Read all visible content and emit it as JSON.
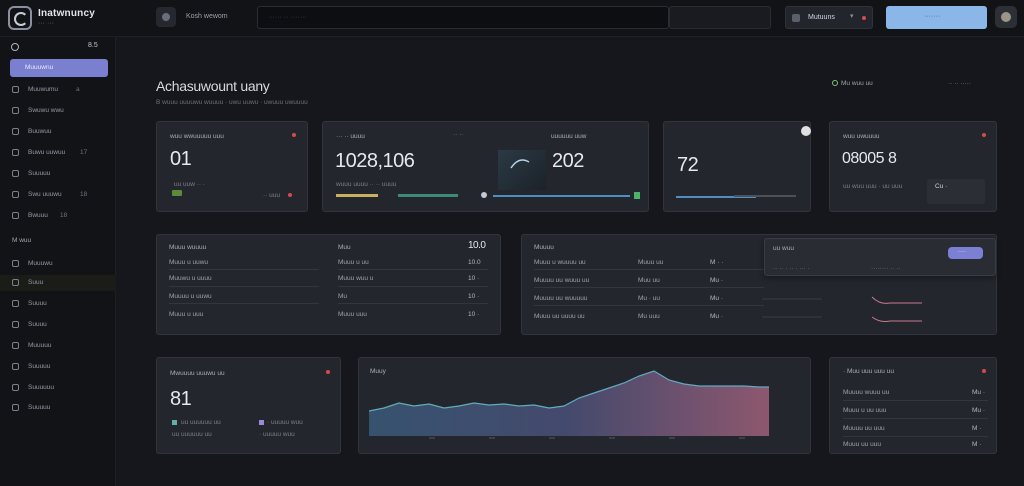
{
  "app": {
    "brand": "Inatwnuncy",
    "brand_sub": "··· ···"
  },
  "topbar": {
    "label": "Kosh wewom",
    "search_placeholder": "······ ·· ·······",
    "workspace": "Mutuuns",
    "workspace_chevron": "▾",
    "primary_button": "·······"
  },
  "sidebar": {
    "top_count": "8.5",
    "active": "Muuuwnu",
    "items": [
      {
        "label": "Muuwumu",
        "badge": "a"
      },
      {
        "label": "Swuwu wwu",
        "badge": ""
      },
      {
        "label": "Buuwuu",
        "badge": ""
      },
      {
        "label": "Buwu uuwuu",
        "badge": "17"
      },
      {
        "label": "Suuuuu",
        "badge": ""
      },
      {
        "label": "Swu uuuwu",
        "badge": "18"
      },
      {
        "label": "Bwuuu",
        "badge": "18"
      }
    ],
    "section": "M wuu",
    "items2": [
      {
        "label": "Muuuwu"
      },
      {
        "label": "Suuu"
      },
      {
        "label": "Suuuu"
      },
      {
        "label": "Suuuu"
      },
      {
        "label": "Muuuuu"
      },
      {
        "label": "Suuuuu"
      },
      {
        "label": "Suuuuuu"
      },
      {
        "label": "Suuuuu"
      }
    ]
  },
  "header": {
    "title": "Achasuwount uany",
    "subtitle": "B wuuu uuuuwu wuuuu · uwu uuwu · uwuuu uwuuuu",
    "right1": "Mu wuu uu",
    "right2": "·· ·· ·····"
  },
  "stats": [
    {
      "title": "wuu wwuuuuu uuu",
      "value": "01",
      "footnote": "uu uuw ·· ·",
      "side": "·· uuu"
    },
    {
      "title": "··· ·· uuuu",
      "value": "1028,106",
      "footnote": "wuuu uuuu ·· ·· uuuu",
      "side": "·· ··"
    },
    {
      "title": "uuuuuu uuw",
      "value": "202",
      "footnote": "",
      "side": ""
    },
    {
      "title": "",
      "value": "72",
      "footnote": "",
      "side": ""
    },
    {
      "title": "wuu uwuuuu",
      "value": "08005 8",
      "footnote": "uu wuu uuu · uu uuu",
      "side": "Cu ·"
    }
  ],
  "table_left": {
    "title": "Muuu wuuuu",
    "col2": "Muu",
    "col3": "10.0",
    "rows": [
      {
        "name": "Muuu u uuwu",
        "mid": "Muuu u uu",
        "val": "10.0"
      },
      {
        "name": "Muuwu u uuuu",
        "mid": "Muuu wuu u",
        "val": "10 ·"
      },
      {
        "name": "Muuuu u uuwu",
        "mid": "Mu",
        "val": "10 ·"
      },
      {
        "name": "Muuu u uuu",
        "mid": "Muuu uuu",
        "val": "10 ·"
      }
    ]
  },
  "table_mid": {
    "title": "Muuuu",
    "rows": [
      {
        "name": "Muuu u wuuuu uu",
        "mid": "Muuu uu",
        "val": "M · ·"
      },
      {
        "name": "Muuuu uu wuuu uu",
        "mid": "Muu uu",
        "val": "Mu ·"
      },
      {
        "name": "Muuuu uu wuuuuu",
        "mid": "Mu · uu",
        "val": "Mu ·"
      },
      {
        "name": "Muuu uu uuuu uu",
        "mid": "Mu uuu",
        "val": "Mu ·"
      }
    ]
  },
  "popover": {
    "title": "uu wuu",
    "line": "·· ·· · ·· · ··· ·",
    "line2": "········ ·· ··",
    "button": "····"
  },
  "bottom_left": {
    "title": "Mwuuuu uuuwu uu",
    "value": "81",
    "legend1": "uu uuuuuu uu",
    "legend2": "· uuuuu wuu"
  },
  "area_chart": {
    "title": "Muuy"
  },
  "bottom_right": {
    "title": "· Muu uuu uuu uu",
    "rows": [
      {
        "name": "Muuuu wuuu uu",
        "val": "Mu ·"
      },
      {
        "name": "Muuu u uu uuu",
        "val": "Mu ·"
      },
      {
        "name": "Muuuu uu uuu",
        "val": "M ·"
      },
      {
        "name": "Muuu uu uuu",
        "val": "M ·"
      }
    ]
  },
  "colors": {
    "accent": "#7b80d4",
    "primary_button": "#8ab7e8",
    "danger": "#d54a4a",
    "success": "#5fbf6a"
  }
}
